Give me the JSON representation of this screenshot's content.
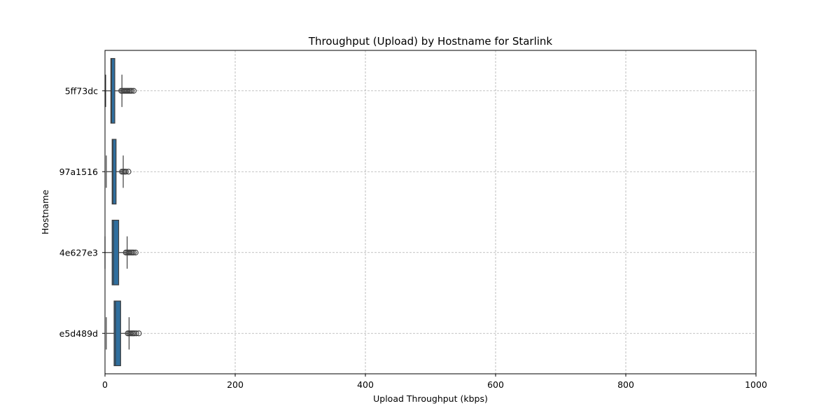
{
  "chart_data": {
    "type": "boxplot",
    "orientation": "horizontal",
    "title": "Throughput (Upload) by Hostname for Starlink",
    "xlabel": "Upload Throughput (kbps)",
    "ylabel": "Hostname",
    "xlim": [
      0,
      1000
    ],
    "xticks": [
      "0",
      "200",
      "400",
      "600",
      "800",
      "1000"
    ],
    "grid": true,
    "box_color": "#2f6e9e",
    "categories": [
      "5ff73dc",
      "97a1516",
      "4e627e3",
      "e5d489d"
    ],
    "boxes": [
      {
        "name": "5ff73dc",
        "whislo": 1,
        "q1": 9,
        "med": 10,
        "q3": 15,
        "whishi": 26,
        "fliers": [
          25,
          27,
          29,
          31,
          33,
          35,
          37,
          39,
          41,
          44
        ]
      },
      {
        "name": "97a1516",
        "whislo": 2,
        "q1": 11,
        "med": 12,
        "q3": 17,
        "whishi": 28,
        "fliers": [
          26,
          28,
          30,
          32,
          36
        ]
      },
      {
        "name": "4e627e3",
        "whislo": 0,
        "q1": 11,
        "med": 13,
        "q3": 21,
        "whishi": 34,
        "fliers": [
          32,
          34,
          36,
          38,
          40,
          42,
          44,
          47
        ]
      },
      {
        "name": "e5d489d",
        "whislo": 2,
        "q1": 14,
        "med": 16,
        "q3": 24,
        "whishi": 37,
        "fliers": [
          35,
          37,
          39,
          41,
          43,
          45,
          48,
          52
        ]
      }
    ]
  }
}
